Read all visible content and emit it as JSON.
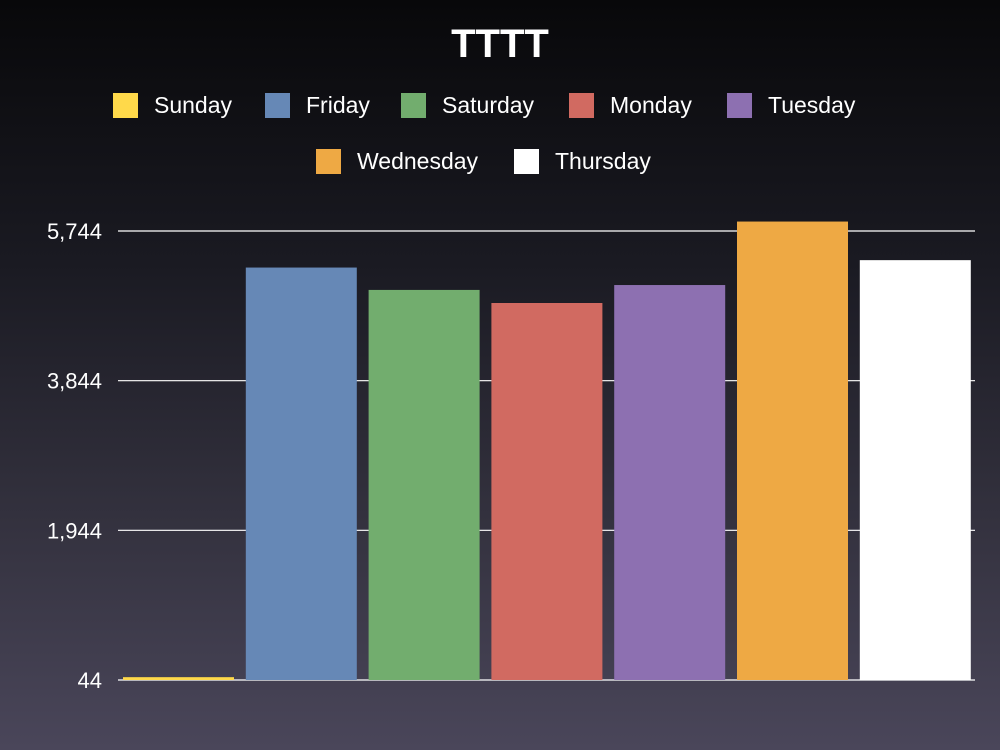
{
  "chart_data": {
    "type": "bar",
    "title": "TTTT",
    "xlabel": "",
    "ylabel": "",
    "ylim": [
      44,
      5744
    ],
    "yticks": [
      "44",
      "1,944",
      "3,844",
      "5,744"
    ],
    "ytick_values": [
      44,
      1944,
      3844,
      5744
    ],
    "grid": true,
    "legend_position": "top",
    "series": [
      {
        "name": "Sunday",
        "value": 80,
        "color": "#ffd94a"
      },
      {
        "name": "Friday",
        "value": 5280,
        "color": "#6688b6"
      },
      {
        "name": "Saturday",
        "value": 4996,
        "color": "#72ad6e"
      },
      {
        "name": "Monday",
        "value": 4830,
        "color": "#d16a61"
      },
      {
        "name": "Tuesday",
        "value": 5058,
        "color": "#8d70b1"
      },
      {
        "name": "Wednesday",
        "value": 5864,
        "color": "#eea944"
      },
      {
        "name": "Thursday",
        "value": 5374,
        "color": "#ffffff"
      }
    ]
  }
}
